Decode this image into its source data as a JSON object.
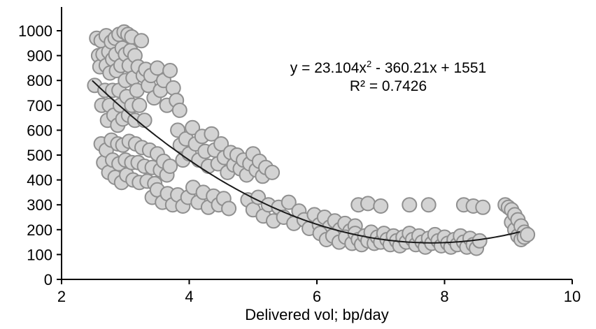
{
  "chart_data": {
    "type": "scatter",
    "title": "",
    "xlabel": "Delivered vol; bp/day",
    "ylabel": "",
    "xlim": [
      2,
      10
    ],
    "ylim": [
      0,
      1000
    ],
    "x_ticks": [
      2,
      4,
      6,
      8,
      10
    ],
    "y_ticks": [
      0,
      100,
      200,
      300,
      400,
      500,
      600,
      700,
      800,
      900,
      1000
    ],
    "grid": false,
    "legend_position": "none",
    "marker": {
      "fill": "#d3d3d3",
      "stroke": "#8f8f8f",
      "stroke_width": 2,
      "radius": 10
    },
    "trendline": {
      "type": "polynomial",
      "degree": 2,
      "a": 23.104,
      "b": -360.21,
      "c": 1551,
      "x_start": 2.48,
      "x_end": 9.22,
      "color": "#1a1a1a",
      "width": 2
    },
    "annotation": {
      "equation_prefix": "y = 23.104x",
      "equation_sup": "2",
      "equation_suffix": " - 360.21x + 1551",
      "r_squared": "R² = 0.7426"
    },
    "points": [
      [
        2.52,
        780
      ],
      [
        2.55,
        970
      ],
      [
        2.58,
        900
      ],
      [
        2.6,
        855
      ],
      [
        2.62,
        960
      ],
      [
        2.63,
        700
      ],
      [
        2.65,
        905
      ],
      [
        2.68,
        760
      ],
      [
        2.7,
        980
      ],
      [
        2.7,
        860
      ],
      [
        2.72,
        640
      ],
      [
        2.74,
        915
      ],
      [
        2.75,
        700
      ],
      [
        2.76,
        830
      ],
      [
        2.78,
        955
      ],
      [
        2.8,
        885
      ],
      [
        2.8,
        760
      ],
      [
        2.82,
        660
      ],
      [
        2.84,
        970
      ],
      [
        2.85,
        905
      ],
      [
        2.86,
        840
      ],
      [
        2.88,
        620
      ],
      [
        2.9,
        985
      ],
      [
        2.9,
        760
      ],
      [
        2.92,
        700
      ],
      [
        2.93,
        860
      ],
      [
        2.95,
        930
      ],
      [
        2.96,
        645
      ],
      [
        2.98,
        995
      ],
      [
        3.0,
        905
      ],
      [
        3.0,
        800
      ],
      [
        3.02,
        735
      ],
      [
        3.04,
        985
      ],
      [
        3.05,
        660
      ],
      [
        3.06,
        860
      ],
      [
        3.08,
        920
      ],
      [
        3.1,
        700
      ],
      [
        3.1,
        975
      ],
      [
        3.12,
        810
      ],
      [
        3.15,
        640
      ],
      [
        3.15,
        900
      ],
      [
        3.18,
        760
      ],
      [
        3.2,
        855
      ],
      [
        3.22,
        700
      ],
      [
        3.25,
        960
      ],
      [
        3.28,
        820
      ],
      [
        3.3,
        640
      ],
      [
        2.62,
        545
      ],
      [
        2.66,
        470
      ],
      [
        2.7,
        520
      ],
      [
        2.74,
        430
      ],
      [
        2.78,
        560
      ],
      [
        2.8,
        480
      ],
      [
        2.84,
        410
      ],
      [
        2.88,
        545
      ],
      [
        2.9,
        465
      ],
      [
        2.94,
        390
      ],
      [
        2.96,
        540
      ],
      [
        3.0,
        480
      ],
      [
        3.02,
        420
      ],
      [
        3.06,
        555
      ],
      [
        3.1,
        470
      ],
      [
        3.12,
        400
      ],
      [
        3.16,
        545
      ],
      [
        3.2,
        470
      ],
      [
        3.22,
        390
      ],
      [
        3.26,
        530
      ],
      [
        3.3,
        455
      ],
      [
        3.34,
        395
      ],
      [
        3.38,
        520
      ],
      [
        3.42,
        450
      ],
      [
        3.46,
        385
      ],
      [
        3.5,
        505
      ],
      [
        3.55,
        440
      ],
      [
        3.6,
        475
      ],
      [
        3.65,
        420
      ],
      [
        3.7,
        455
      ],
      [
        3.32,
        845
      ],
      [
        3.36,
        780
      ],
      [
        3.4,
        820
      ],
      [
        3.45,
        730
      ],
      [
        3.5,
        850
      ],
      [
        3.55,
        760
      ],
      [
        3.6,
        800
      ],
      [
        3.65,
        700
      ],
      [
        3.7,
        840
      ],
      [
        3.75,
        770
      ],
      [
        3.8,
        720
      ],
      [
        3.85,
        680
      ],
      [
        3.82,
        600
      ],
      [
        3.86,
        540
      ],
      [
        3.9,
        480
      ],
      [
        3.95,
        565
      ],
      [
        4.0,
        505
      ],
      [
        4.05,
        610
      ],
      [
        4.1,
        545
      ],
      [
        4.15,
        480
      ],
      [
        4.2,
        575
      ],
      [
        4.25,
        515
      ],
      [
        4.3,
        455
      ],
      [
        4.35,
        585
      ],
      [
        4.4,
        520
      ],
      [
        4.45,
        465
      ],
      [
        4.5,
        545
      ],
      [
        4.55,
        490
      ],
      [
        4.6,
        430
      ],
      [
        4.65,
        510
      ],
      [
        4.7,
        460
      ],
      [
        4.75,
        500
      ],
      [
        4.8,
        445
      ],
      [
        4.85,
        480
      ],
      [
        4.9,
        420
      ],
      [
        4.95,
        465
      ],
      [
        5.0,
        505
      ],
      [
        5.05,
        440
      ],
      [
        5.1,
        475
      ],
      [
        5.15,
        415
      ],
      [
        5.2,
        450
      ],
      [
        5.3,
        430
      ],
      [
        3.42,
        330
      ],
      [
        3.5,
        360
      ],
      [
        3.58,
        310
      ],
      [
        3.66,
        345
      ],
      [
        3.74,
        300
      ],
      [
        3.82,
        340
      ],
      [
        3.9,
        295
      ],
      [
        3.98,
        330
      ],
      [
        4.06,
        370
      ],
      [
        4.14,
        310
      ],
      [
        4.22,
        350
      ],
      [
        4.3,
        290
      ],
      [
        4.38,
        335
      ],
      [
        4.46,
        300
      ],
      [
        4.54,
        325
      ],
      [
        4.62,
        285
      ],
      [
        4.92,
        320
      ],
      [
        5.0,
        280
      ],
      [
        5.08,
        330
      ],
      [
        5.16,
        255
      ],
      [
        5.24,
        300
      ],
      [
        5.32,
        235
      ],
      [
        5.4,
        290
      ],
      [
        5.48,
        250
      ],
      [
        5.56,
        310
      ],
      [
        5.64,
        225
      ],
      [
        5.72,
        275
      ],
      [
        5.8,
        240
      ],
      [
        5.88,
        205
      ],
      [
        5.96,
        260
      ],
      [
        6.04,
        220
      ],
      [
        6.12,
        250
      ],
      [
        6.2,
        210
      ],
      [
        6.28,
        235
      ],
      [
        6.36,
        200
      ],
      [
        6.44,
        225
      ],
      [
        6.52,
        195
      ],
      [
        6.6,
        215
      ],
      [
        6.05,
        185
      ],
      [
        6.15,
        160
      ],
      [
        6.25,
        175
      ],
      [
        6.35,
        150
      ],
      [
        6.45,
        170
      ],
      [
        6.55,
        145
      ],
      [
        6.6,
        185
      ],
      [
        6.65,
        160
      ],
      [
        6.7,
        140
      ],
      [
        6.75,
        175
      ],
      [
        6.8,
        155
      ],
      [
        6.85,
        190
      ],
      [
        6.9,
        145
      ],
      [
        6.95,
        170
      ],
      [
        7.0,
        150
      ],
      [
        7.05,
        185
      ],
      [
        7.1,
        160
      ],
      [
        7.15,
        140
      ],
      [
        7.2,
        175
      ],
      [
        7.25,
        155
      ],
      [
        7.3,
        135
      ],
      [
        7.35,
        170
      ],
      [
        7.4,
        150
      ],
      [
        7.45,
        185
      ],
      [
        7.5,
        160
      ],
      [
        7.55,
        140
      ],
      [
        7.6,
        175
      ],
      [
        7.65,
        150
      ],
      [
        7.7,
        130
      ],
      [
        7.75,
        165
      ],
      [
        7.8,
        145
      ],
      [
        7.85,
        180
      ],
      [
        7.9,
        155
      ],
      [
        7.95,
        135
      ],
      [
        8.0,
        170
      ],
      [
        8.05,
        145
      ],
      [
        8.1,
        130
      ],
      [
        8.15,
        160
      ],
      [
        8.2,
        140
      ],
      [
        8.25,
        175
      ],
      [
        8.3,
        150
      ],
      [
        8.35,
        130
      ],
      [
        8.4,
        165
      ],
      [
        8.45,
        140
      ],
      [
        8.5,
        125
      ],
      [
        8.55,
        155
      ],
      [
        6.65,
        300
      ],
      [
        6.8,
        305
      ],
      [
        7.0,
        295
      ],
      [
        7.45,
        300
      ],
      [
        7.75,
        300
      ],
      [
        8.3,
        300
      ],
      [
        8.45,
        295
      ],
      [
        8.6,
        290
      ],
      [
        8.95,
        300
      ],
      [
        9.0,
        290
      ],
      [
        9.05,
        280
      ],
      [
        9.05,
        230
      ],
      [
        9.1,
        260
      ],
      [
        9.1,
        200
      ],
      [
        9.15,
        240
      ],
      [
        9.15,
        175
      ],
      [
        9.2,
        215
      ],
      [
        9.2,
        160
      ],
      [
        9.25,
        190
      ],
      [
        9.25,
        170
      ],
      [
        9.3,
        180
      ]
    ]
  }
}
